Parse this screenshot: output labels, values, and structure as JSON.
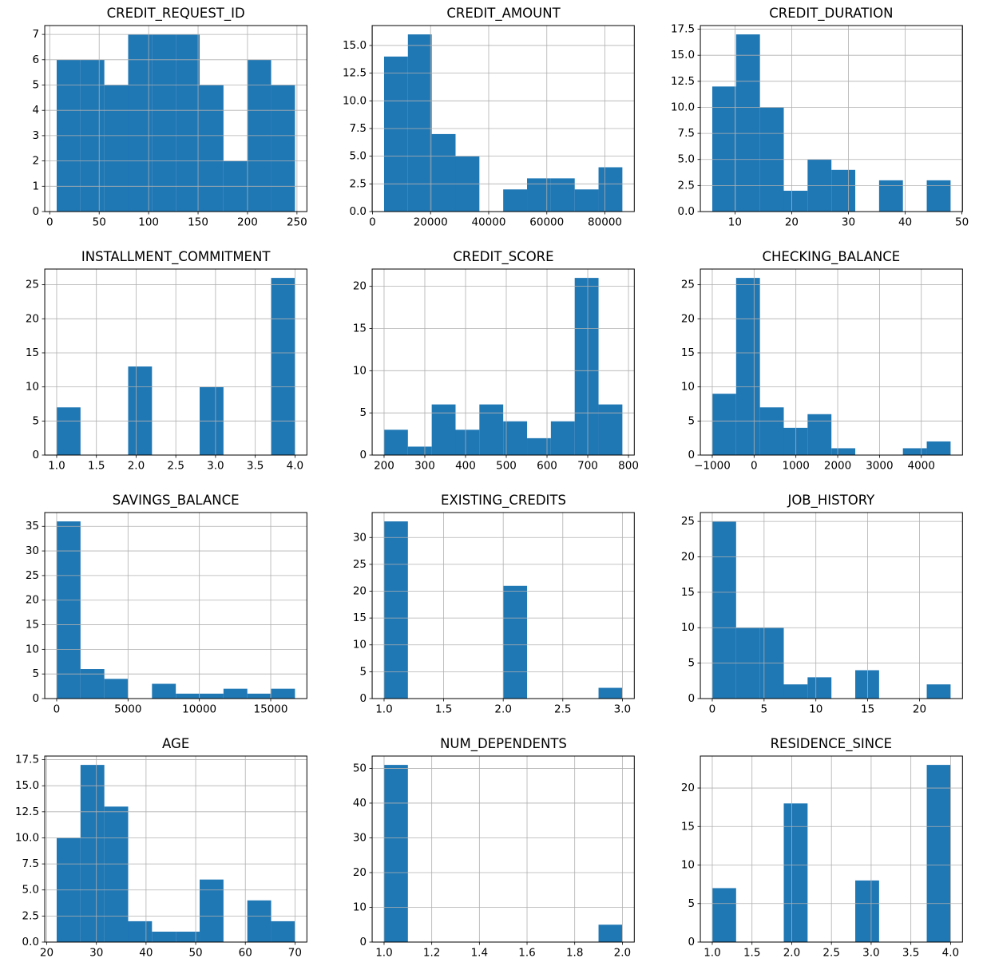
{
  "figure": {
    "background": "#ffffff",
    "bar_color": "#1f77b4",
    "grid_color": "#b0b0b0",
    "axis_color": "#000000",
    "text_color": "#000000",
    "layout": "4 rows x 3 columns of histograms",
    "grid": true
  },
  "chart_data": [
    {
      "type": "bar",
      "subtype": "histogram",
      "title": "CREDIT_REQUEST_ID",
      "bin_start": 7,
      "bin_end": 248,
      "bins": 10,
      "counts": [
        6,
        6,
        5,
        7,
        7,
        7,
        5,
        2,
        6,
        5
      ],
      "xlim": [
        -5.05,
        260.05
      ],
      "ylim": [
        0,
        7.35
      ],
      "xticks": [
        0,
        50,
        100,
        150,
        200,
        250
      ],
      "xtick_labels": [
        "0",
        "50",
        "100",
        "150",
        "200",
        "250"
      ],
      "yticks": [
        0,
        1,
        2,
        3,
        4,
        5,
        6,
        7
      ],
      "ytick_labels": [
        "0",
        "1",
        "2",
        "3",
        "4",
        "5",
        "6",
        "7"
      ],
      "grid": true
    },
    {
      "type": "bar",
      "subtype": "histogram",
      "title": "CREDIT_AMOUNT",
      "bin_start": 4000,
      "bin_end": 86000,
      "bins": 10,
      "counts": [
        14,
        16,
        7,
        5,
        0,
        2,
        3,
        3,
        2,
        4
      ],
      "xlim": [
        -100,
        90100
      ],
      "ylim": [
        0,
        16.8
      ],
      "xticks": [
        0,
        20000,
        40000,
        60000,
        80000
      ],
      "xtick_labels": [
        "0",
        "20000",
        "40000",
        "60000",
        "80000"
      ],
      "yticks": [
        0,
        2.5,
        5,
        7.5,
        10,
        12.5,
        15
      ],
      "ytick_labels": [
        "0.0",
        "2.5",
        "5.0",
        "7.5",
        "10.0",
        "12.5",
        "15.0"
      ],
      "grid": true
    },
    {
      "type": "bar",
      "subtype": "histogram",
      "title": "CREDIT_DURATION",
      "bin_start": 6,
      "bin_end": 48,
      "bins": 10,
      "counts": [
        12,
        17,
        10,
        2,
        5,
        4,
        0,
        3,
        0,
        3
      ],
      "xlim": [
        3.9,
        50.1
      ],
      "ylim": [
        0,
        17.85
      ],
      "xticks": [
        10,
        20,
        30,
        40,
        50
      ],
      "xtick_labels": [
        "10",
        "20",
        "30",
        "40",
        "50"
      ],
      "yticks": [
        0,
        2.5,
        5,
        7.5,
        10,
        12.5,
        15,
        17.5
      ],
      "ytick_labels": [
        "0.0",
        "2.5",
        "5.0",
        "7.5",
        "10.0",
        "12.5",
        "15.0",
        "17.5"
      ],
      "grid": true
    },
    {
      "type": "bar",
      "subtype": "histogram",
      "title": "INSTALLMENT_COMMITMENT",
      "bin_start": 1,
      "bin_end": 4,
      "bins": 10,
      "counts": [
        7,
        0,
        0,
        13,
        0,
        0,
        10,
        0,
        0,
        26
      ],
      "xlim": [
        0.85,
        4.15
      ],
      "ylim": [
        0,
        27.3
      ],
      "xticks": [
        1,
        1.5,
        2,
        2.5,
        3,
        3.5,
        4
      ],
      "xtick_labels": [
        "1.0",
        "1.5",
        "2.0",
        "2.5",
        "3.0",
        "3.5",
        "4.0"
      ],
      "yticks": [
        0,
        5,
        10,
        15,
        20,
        25
      ],
      "ytick_labels": [
        "0",
        "5",
        "10",
        "15",
        "20",
        "25"
      ],
      "grid": true
    },
    {
      "type": "bar",
      "subtype": "histogram",
      "title": "CREDIT_SCORE",
      "bin_start": 200,
      "bin_end": 785,
      "bins": 10,
      "counts": [
        3,
        1,
        6,
        3,
        6,
        4,
        2,
        4,
        21,
        6
      ],
      "xlim": [
        170.75,
        814.25
      ],
      "ylim": [
        0,
        22.05
      ],
      "xticks": [
        200,
        300,
        400,
        500,
        600,
        700,
        800
      ],
      "xtick_labels": [
        "200",
        "300",
        "400",
        "500",
        "600",
        "700",
        "800"
      ],
      "yticks": [
        0,
        5,
        10,
        15,
        20
      ],
      "ytick_labels": [
        "0",
        "5",
        "10",
        "15",
        "20"
      ],
      "grid": true
    },
    {
      "type": "bar",
      "subtype": "histogram",
      "title": "CHECKING_BALANCE",
      "bin_start": -1000,
      "bin_end": 4700,
      "bins": 10,
      "counts": [
        9,
        26,
        7,
        4,
        6,
        1,
        0,
        0,
        1,
        2
      ],
      "xlim": [
        -1285,
        4985
      ],
      "ylim": [
        0,
        27.3
      ],
      "xticks": [
        -1000,
        0,
        1000,
        2000,
        3000,
        4000
      ],
      "xtick_labels": [
        "−1000",
        "0",
        "1000",
        "2000",
        "3000",
        "4000"
      ],
      "yticks": [
        0,
        5,
        10,
        15,
        20,
        25
      ],
      "ytick_labels": [
        "0",
        "5",
        "10",
        "15",
        "20",
        "25"
      ],
      "grid": true
    },
    {
      "type": "bar",
      "subtype": "histogram",
      "title": "SAVINGS_BALANCE",
      "bin_start": 0,
      "bin_end": 16700,
      "bins": 10,
      "counts": [
        36,
        6,
        4,
        0,
        3,
        1,
        1,
        2,
        1,
        2
      ],
      "xlim": [
        -835,
        17535
      ],
      "ylim": [
        0,
        37.8
      ],
      "xticks": [
        0,
        5000,
        10000,
        15000
      ],
      "xtick_labels": [
        "0",
        "5000",
        "10000",
        "15000"
      ],
      "yticks": [
        0,
        5,
        10,
        15,
        20,
        25,
        30,
        35
      ],
      "ytick_labels": [
        "0",
        "5",
        "10",
        "15",
        "20",
        "25",
        "30",
        "35"
      ],
      "grid": true
    },
    {
      "type": "bar",
      "subtype": "histogram",
      "title": "EXISTING_CREDITS",
      "bin_start": 1,
      "bin_end": 3,
      "bins": 10,
      "counts": [
        33,
        0,
        0,
        0,
        0,
        21,
        0,
        0,
        0,
        2
      ],
      "xlim": [
        0.9,
        3.1
      ],
      "ylim": [
        0,
        34.65
      ],
      "xticks": [
        1,
        1.5,
        2,
        2.5,
        3
      ],
      "xtick_labels": [
        "1.0",
        "1.5",
        "2.0",
        "2.5",
        "3.0"
      ],
      "yticks": [
        0,
        5,
        10,
        15,
        20,
        25,
        30
      ],
      "ytick_labels": [
        "0",
        "5",
        "10",
        "15",
        "20",
        "25",
        "30"
      ],
      "grid": true
    },
    {
      "type": "bar",
      "subtype": "histogram",
      "title": "JOB_HISTORY",
      "bin_start": 0,
      "bin_end": 23,
      "bins": 10,
      "counts": [
        25,
        10,
        10,
        2,
        3,
        0,
        4,
        0,
        0,
        2
      ],
      "xlim": [
        -1.15,
        24.15
      ],
      "ylim": [
        0,
        26.25
      ],
      "xticks": [
        0,
        5,
        10,
        15,
        20
      ],
      "xtick_labels": [
        "0",
        "5",
        "10",
        "15",
        "20"
      ],
      "yticks": [
        0,
        5,
        10,
        15,
        20,
        25
      ],
      "ytick_labels": [
        "0",
        "5",
        "10",
        "15",
        "20",
        "25"
      ],
      "grid": true
    },
    {
      "type": "bar",
      "subtype": "histogram",
      "title": "AGE",
      "bin_start": 22,
      "bin_end": 70,
      "bins": 10,
      "counts": [
        10,
        17,
        13,
        2,
        1,
        1,
        6,
        0,
        4,
        2
      ],
      "xlim": [
        19.6,
        72.4
      ],
      "ylim": [
        0,
        17.85
      ],
      "xticks": [
        20,
        30,
        40,
        50,
        60,
        70
      ],
      "xtick_labels": [
        "20",
        "30",
        "40",
        "50",
        "60",
        "70"
      ],
      "yticks": [
        0,
        2.5,
        5,
        7.5,
        10,
        12.5,
        15,
        17.5
      ],
      "ytick_labels": [
        "0.0",
        "2.5",
        "5.0",
        "7.5",
        "10.0",
        "12.5",
        "15.0",
        "17.5"
      ],
      "grid": true
    },
    {
      "type": "bar",
      "subtype": "histogram",
      "title": "NUM_DEPENDENTS",
      "bin_start": 1,
      "bin_end": 2,
      "bins": 10,
      "counts": [
        51,
        0,
        0,
        0,
        0,
        0,
        0,
        0,
        0,
        5
      ],
      "xlim": [
        0.95,
        2.05
      ],
      "ylim": [
        0,
        53.55
      ],
      "xticks": [
        1,
        1.2,
        1.4,
        1.6,
        1.8,
        2
      ],
      "xtick_labels": [
        "1.0",
        "1.2",
        "1.4",
        "1.6",
        "1.8",
        "2.0"
      ],
      "yticks": [
        0,
        10,
        20,
        30,
        40,
        50
      ],
      "ytick_labels": [
        "0",
        "10",
        "20",
        "30",
        "40",
        "50"
      ],
      "grid": true
    },
    {
      "type": "bar",
      "subtype": "histogram",
      "title": "RESIDENCE_SINCE",
      "bin_start": 1,
      "bin_end": 4,
      "bins": 10,
      "counts": [
        7,
        0,
        0,
        18,
        0,
        0,
        8,
        0,
        0,
        23
      ],
      "xlim": [
        0.85,
        4.15
      ],
      "ylim": [
        0,
        24.15
      ],
      "xticks": [
        1,
        1.5,
        2,
        2.5,
        3,
        3.5,
        4
      ],
      "xtick_labels": [
        "1.0",
        "1.5",
        "2.0",
        "2.5",
        "3.0",
        "3.5",
        "4.0"
      ],
      "yticks": [
        0,
        5,
        10,
        15,
        20
      ],
      "ytick_labels": [
        "0",
        "5",
        "10",
        "15",
        "20"
      ],
      "grid": true
    }
  ]
}
